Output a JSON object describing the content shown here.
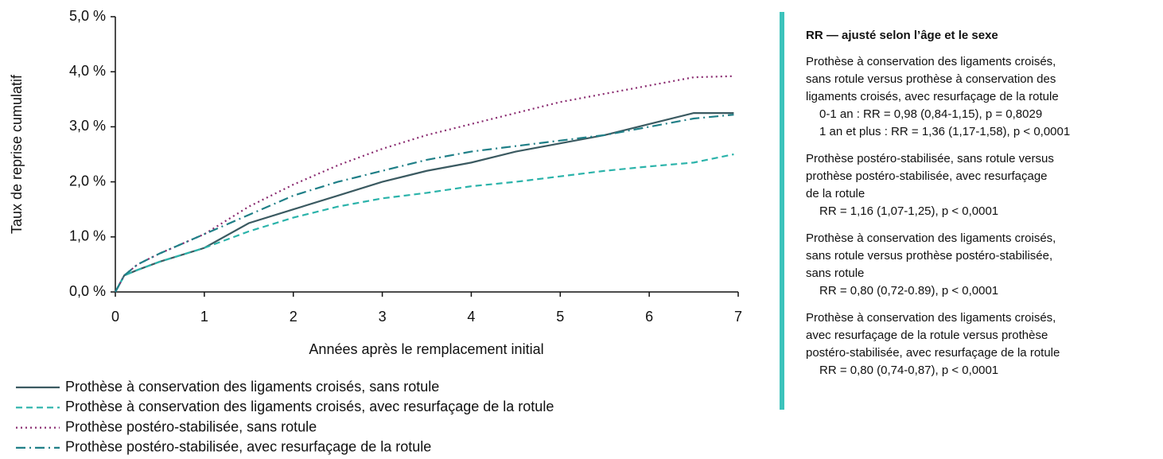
{
  "chart_data": {
    "type": "line",
    "xlabel": "Années après le remplacement initial",
    "ylabel": "Taux de reprise cumulatif",
    "x": [
      0,
      0.1,
      0.25,
      0.5,
      1,
      1.5,
      2,
      2.5,
      3,
      3.5,
      4,
      4.5,
      5,
      5.5,
      6,
      6.5,
      6.95
    ],
    "xlim": [
      0,
      7
    ],
    "xticks": [
      0,
      1,
      2,
      3,
      4,
      5,
      6,
      7
    ],
    "ylim": [
      0,
      5
    ],
    "yticks": [
      {
        "value": 0,
        "label": "0,0 %"
      },
      {
        "value": 1,
        "label": "1,0 %"
      },
      {
        "value": 2,
        "label": "2,0 %"
      },
      {
        "value": 3,
        "label": "3,0 %"
      },
      {
        "value": 4,
        "label": "4,0 %"
      },
      {
        "value": 5,
        "label": "5,0 %"
      }
    ],
    "series": [
      {
        "name": "Prothèse à conservation des ligaments croisés, sans rotule",
        "color": "#3b5a61",
        "dash": "solid",
        "values": [
          0,
          0.3,
          0.4,
          0.55,
          0.8,
          1.25,
          1.5,
          1.75,
          2.0,
          2.2,
          2.35,
          2.55,
          2.7,
          2.85,
          3.05,
          3.25,
          3.25
        ]
      },
      {
        "name": "Prothèse à conservation des ligaments croisés, avec resurfaçage de la rotule",
        "color": "#2bb3aa",
        "dash": "dashed",
        "values": [
          0,
          0.3,
          0.4,
          0.55,
          0.8,
          1.1,
          1.35,
          1.55,
          1.7,
          1.8,
          1.92,
          2.0,
          2.1,
          2.2,
          2.28,
          2.35,
          2.5
        ]
      },
      {
        "name": "Prothèse postéro-stabilisée, sans rotule",
        "color": "#8a2b70",
        "dash": "dotted",
        "values": [
          0,
          0.3,
          0.5,
          0.7,
          1.05,
          1.55,
          1.95,
          2.3,
          2.6,
          2.85,
          3.05,
          3.25,
          3.45,
          3.6,
          3.75,
          3.9,
          3.92
        ]
      },
      {
        "name": "Prothèse postéro-stabilisée, avec resurfaçage de la rotule",
        "color": "#1f7f87",
        "dash": "dashdot",
        "values": [
          0,
          0.3,
          0.5,
          0.7,
          1.05,
          1.4,
          1.75,
          2.0,
          2.2,
          2.4,
          2.55,
          2.65,
          2.75,
          2.85,
          3.0,
          3.15,
          3.22
        ]
      }
    ]
  },
  "panel": {
    "title": "RR — ajusté selon l’âge et le sexe",
    "items": [
      {
        "lines": [
          "Prothèse à conservation des ligaments croisés,",
          "sans rotule versus prothèse à conservation des",
          "ligaments croisés, avec resurfaçage de la rotule"
        ],
        "results": [
          "0-1 an : RR = 0,98 (0,84-1,15), p = 0,8029",
          "1 an et plus : RR = 1,36 (1,17-1,58), p < 0,0001"
        ]
      },
      {
        "lines": [
          "Prothèse postéro-stabilisée, sans rotule versus",
          "prothèse postéro-stabilisée, avec resurfaçage",
          "de la rotule"
        ],
        "results": [
          "RR = 1,16 (1,07-1,25), p < 0,0001"
        ]
      },
      {
        "lines": [
          "Prothèse à conservation des ligaments croisés,",
          "sans rotule versus prothèse postéro-stabilisée,",
          "sans rotule"
        ],
        "results": [
          "RR = 0,80 (0,72-0.89), p < 0,0001"
        ]
      },
      {
        "lines": [
          "Prothèse à conservation des ligaments croisés,",
          "avec resurfaçage de la rotule versus prothèse",
          "postéro-stabilisée, avec resurfaçage de la rotule"
        ],
        "results": [
          "RR = 0,80 (0,74-0,87), p < 0,0001"
        ]
      }
    ]
  }
}
